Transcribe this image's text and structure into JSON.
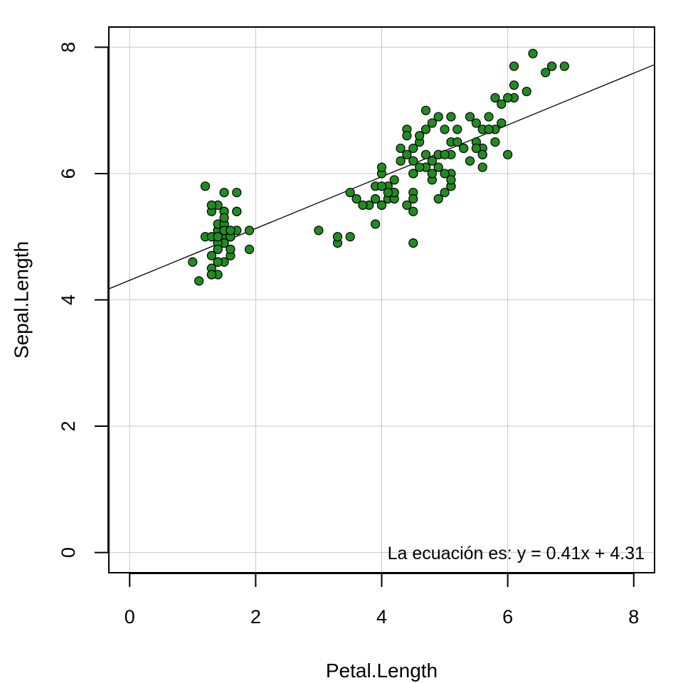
{
  "chart_data": {
    "type": "scatter",
    "title": "",
    "xlabel": "Petal.Length",
    "ylabel": "Sepal.Length",
    "xlim": [
      -0.33,
      8.33
    ],
    "ylim": [
      -0.32,
      8.32
    ],
    "x_ticks": [
      0,
      2,
      4,
      6,
      8
    ],
    "y_ticks": [
      0,
      2,
      4,
      6,
      8
    ],
    "grid": true,
    "colors": {
      "point_fill": "#228B22",
      "point_stroke": "#000000",
      "line": "#000000",
      "grid": "#c8c8c8"
    },
    "regression": {
      "slope": 0.41,
      "intercept": 4.31
    },
    "annotation": "La ecuación es: y = 0.41x + 4.31",
    "points": [
      [
        1.4,
        5.1
      ],
      [
        1.4,
        4.9
      ],
      [
        1.3,
        4.7
      ],
      [
        1.5,
        4.6
      ],
      [
        1.4,
        5.0
      ],
      [
        1.7,
        5.4
      ],
      [
        1.4,
        4.6
      ],
      [
        1.5,
        5.0
      ],
      [
        1.4,
        4.4
      ],
      [
        1.5,
        4.9
      ],
      [
        1.5,
        5.4
      ],
      [
        1.6,
        4.8
      ],
      [
        1.4,
        4.8
      ],
      [
        1.1,
        4.3
      ],
      [
        1.2,
        5.8
      ],
      [
        1.5,
        5.7
      ],
      [
        1.3,
        5.4
      ],
      [
        1.4,
        5.1
      ],
      [
        1.7,
        5.7
      ],
      [
        1.5,
        5.1
      ],
      [
        1.7,
        5.4
      ],
      [
        1.5,
        5.1
      ],
      [
        1.0,
        4.6
      ],
      [
        1.7,
        5.1
      ],
      [
        1.9,
        4.8
      ],
      [
        1.6,
        5.0
      ],
      [
        1.6,
        5.0
      ],
      [
        1.5,
        5.2
      ],
      [
        1.4,
        5.2
      ],
      [
        1.6,
        4.7
      ],
      [
        1.6,
        4.8
      ],
      [
        1.5,
        5.4
      ],
      [
        1.5,
        5.2
      ],
      [
        1.4,
        5.5
      ],
      [
        1.5,
        4.9
      ],
      [
        1.2,
        5.0
      ],
      [
        1.3,
        5.5
      ],
      [
        1.4,
        4.9
      ],
      [
        1.3,
        4.4
      ],
      [
        1.5,
        5.1
      ],
      [
        1.3,
        5.0
      ],
      [
        1.3,
        4.5
      ],
      [
        1.3,
        4.4
      ],
      [
        1.6,
        5.0
      ],
      [
        1.9,
        5.1
      ],
      [
        1.4,
        4.8
      ],
      [
        1.6,
        5.1
      ],
      [
        1.4,
        4.6
      ],
      [
        1.5,
        5.3
      ],
      [
        1.4,
        5.0
      ],
      [
        4.7,
        7.0
      ],
      [
        4.5,
        6.4
      ],
      [
        4.9,
        6.9
      ],
      [
        4.0,
        5.5
      ],
      [
        4.6,
        6.5
      ],
      [
        4.5,
        5.7
      ],
      [
        4.7,
        6.3
      ],
      [
        3.3,
        4.9
      ],
      [
        4.6,
        6.6
      ],
      [
        3.9,
        5.2
      ],
      [
        3.5,
        5.0
      ],
      [
        4.2,
        5.9
      ],
      [
        4.0,
        6.0
      ],
      [
        4.7,
        6.1
      ],
      [
        3.6,
        5.6
      ],
      [
        4.4,
        6.7
      ],
      [
        4.5,
        5.6
      ],
      [
        4.1,
        5.8
      ],
      [
        4.5,
        6.2
      ],
      [
        3.9,
        5.6
      ],
      [
        4.8,
        5.9
      ],
      [
        4.0,
        6.1
      ],
      [
        4.9,
        6.3
      ],
      [
        4.7,
        6.1
      ],
      [
        4.3,
        6.4
      ],
      [
        4.4,
        6.6
      ],
      [
        4.8,
        6.8
      ],
      [
        5.0,
        6.7
      ],
      [
        4.5,
        6.0
      ],
      [
        3.5,
        5.7
      ],
      [
        3.8,
        5.5
      ],
      [
        3.7,
        5.5
      ],
      [
        3.9,
        5.8
      ],
      [
        5.1,
        6.0
      ],
      [
        4.5,
        5.4
      ],
      [
        4.5,
        6.0
      ],
      [
        4.7,
        6.7
      ],
      [
        4.4,
        6.3
      ],
      [
        4.1,
        5.6
      ],
      [
        4.0,
        5.5
      ],
      [
        4.4,
        5.5
      ],
      [
        4.6,
        6.1
      ],
      [
        4.0,
        5.8
      ],
      [
        3.3,
        5.0
      ],
      [
        4.2,
        5.6
      ],
      [
        4.2,
        5.7
      ],
      [
        4.2,
        5.7
      ],
      [
        4.3,
        6.2
      ],
      [
        3.0,
        5.1
      ],
      [
        4.1,
        5.7
      ],
      [
        6.0,
        6.3
      ],
      [
        5.1,
        5.8
      ],
      [
        5.9,
        7.1
      ],
      [
        5.6,
        6.3
      ],
      [
        5.8,
        6.5
      ],
      [
        6.6,
        7.6
      ],
      [
        4.5,
        4.9
      ],
      [
        6.3,
        7.3
      ],
      [
        5.8,
        6.7
      ],
      [
        6.1,
        7.2
      ],
      [
        5.1,
        6.5
      ],
      [
        5.3,
        6.4
      ],
      [
        5.5,
        6.8
      ],
      [
        5.0,
        5.7
      ],
      [
        5.1,
        5.8
      ],
      [
        5.3,
        6.4
      ],
      [
        5.5,
        6.5
      ],
      [
        6.7,
        7.7
      ],
      [
        6.9,
        7.7
      ],
      [
        5.0,
        6.0
      ],
      [
        5.7,
        6.9
      ],
      [
        4.9,
        5.6
      ],
      [
        6.7,
        7.7
      ],
      [
        4.9,
        6.3
      ],
      [
        5.7,
        6.7
      ],
      [
        6.0,
        7.2
      ],
      [
        4.8,
        6.2
      ],
      [
        4.9,
        6.1
      ],
      [
        5.6,
        6.4
      ],
      [
        5.8,
        7.2
      ],
      [
        6.1,
        7.4
      ],
      [
        6.4,
        7.9
      ],
      [
        5.6,
        6.4
      ],
      [
        5.1,
        6.3
      ],
      [
        5.6,
        6.1
      ],
      [
        6.1,
        7.7
      ],
      [
        5.6,
        6.3
      ],
      [
        5.5,
        6.4
      ],
      [
        4.8,
        6.0
      ],
      [
        5.4,
        6.9
      ],
      [
        5.6,
        6.7
      ],
      [
        5.1,
        6.9
      ],
      [
        5.1,
        5.8
      ],
      [
        5.9,
        6.8
      ],
      [
        5.7,
        6.7
      ],
      [
        5.2,
        6.7
      ],
      [
        5.0,
        6.3
      ],
      [
        5.2,
        6.5
      ],
      [
        5.4,
        6.2
      ],
      [
        5.1,
        5.9
      ]
    ]
  }
}
